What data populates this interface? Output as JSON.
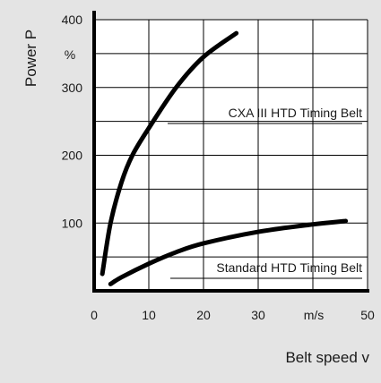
{
  "chart_data": {
    "type": "line",
    "title": "",
    "ylabel": "Power P",
    "yunit": "%",
    "xlabel": "Belt speed v",
    "xunit": "m/s",
    "xlim": [
      0,
      50
    ],
    "ylim": [
      0,
      400
    ],
    "xticks": [
      0,
      10,
      20,
      30,
      50
    ],
    "yticks": [
      100,
      200,
      300,
      400
    ],
    "grid": true,
    "legend": "none",
    "colors": {
      "curve": "#000000",
      "grid": "#000000",
      "panel": "#e4e4e4"
    },
    "series": [
      {
        "name": "CXA III HTD Timing Belt",
        "x": [
          1.5,
          3,
          5,
          7,
          10,
          15,
          20,
          26
        ],
        "y": [
          25,
          100,
          160,
          200,
          240,
          300,
          345,
          380
        ]
      },
      {
        "name": "Standard HTD Timing Belt",
        "x": [
          3,
          5,
          10,
          15,
          20,
          30,
          40,
          46
        ],
        "y": [
          10,
          20,
          40,
          57,
          70,
          87,
          98,
          103
        ]
      }
    ]
  }
}
